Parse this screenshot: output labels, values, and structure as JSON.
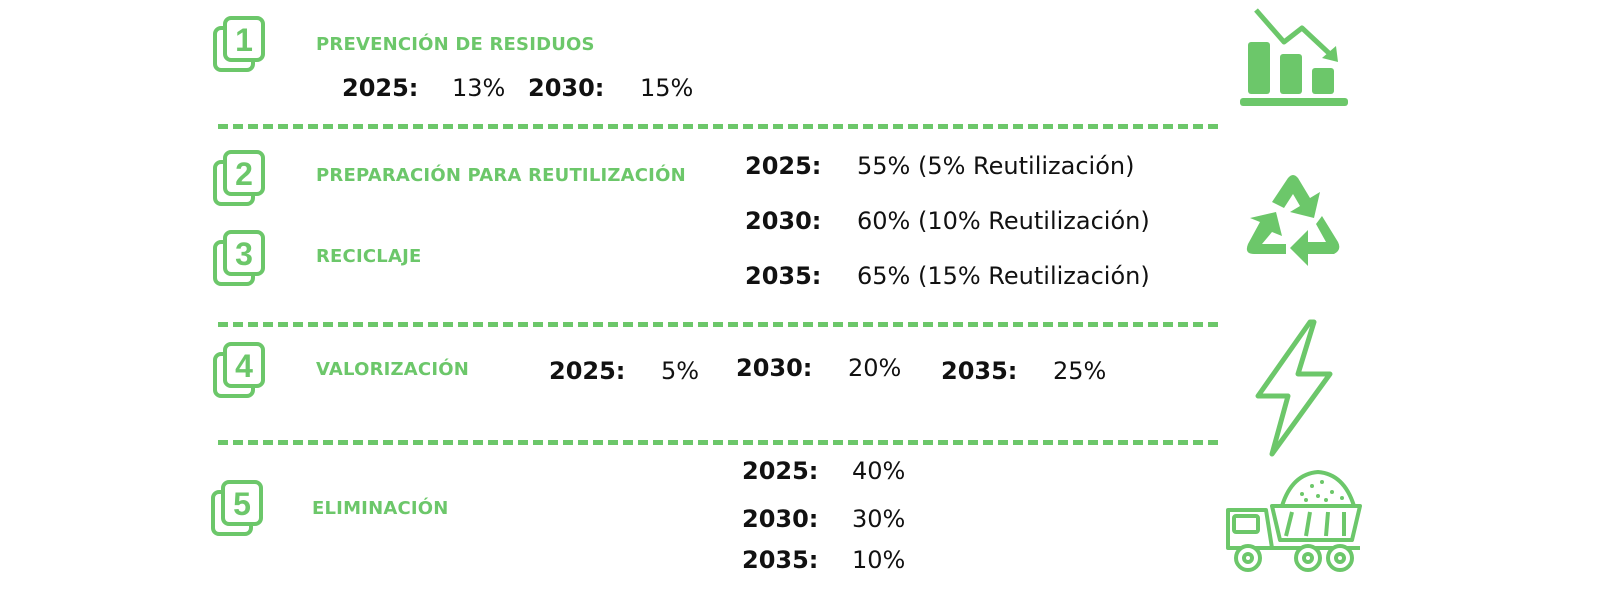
{
  "colors": {
    "accent": "#6cc76a",
    "text": "#111111",
    "background": "#ffffff"
  },
  "sections": [
    {
      "number": "1",
      "title": "PREVENCIÓN DE RESIDUOS",
      "icon": "declining-bar-chart-icon",
      "targets": [
        {
          "year": "2025:",
          "value": "13%"
        },
        {
          "year": "2030:",
          "value": "15%"
        }
      ]
    },
    {
      "number": "2",
      "title": "PREPARACIÓN PARA REUTILIZACIÓN",
      "icon": "recycle-icon",
      "targets": []
    },
    {
      "number": "3",
      "title": "RECICLAJE",
      "targets": [
        {
          "year": "2025:",
          "value": "55% (5% Reutilización)"
        },
        {
          "year": "2030:",
          "value": "60% (10% Reutilización)"
        },
        {
          "year": "2035:",
          "value": "65% (15% Reutilización)"
        }
      ]
    },
    {
      "number": "4",
      "title": "VALORIZACIÓN",
      "icon": "lightning-bolt-icon",
      "targets": [
        {
          "year": "2025:",
          "value": "5%"
        },
        {
          "year": "2030:",
          "value": "20%"
        },
        {
          "year": "2035:",
          "value": "25%"
        }
      ]
    },
    {
      "number": "5",
      "title": "ELIMINACIÓN",
      "icon": "dump-truck-icon",
      "targets": [
        {
          "year": "2025:",
          "value": "40%"
        },
        {
          "year": "2030:",
          "value": "30%"
        },
        {
          "year": "2035:",
          "value": "10%"
        }
      ]
    }
  ]
}
